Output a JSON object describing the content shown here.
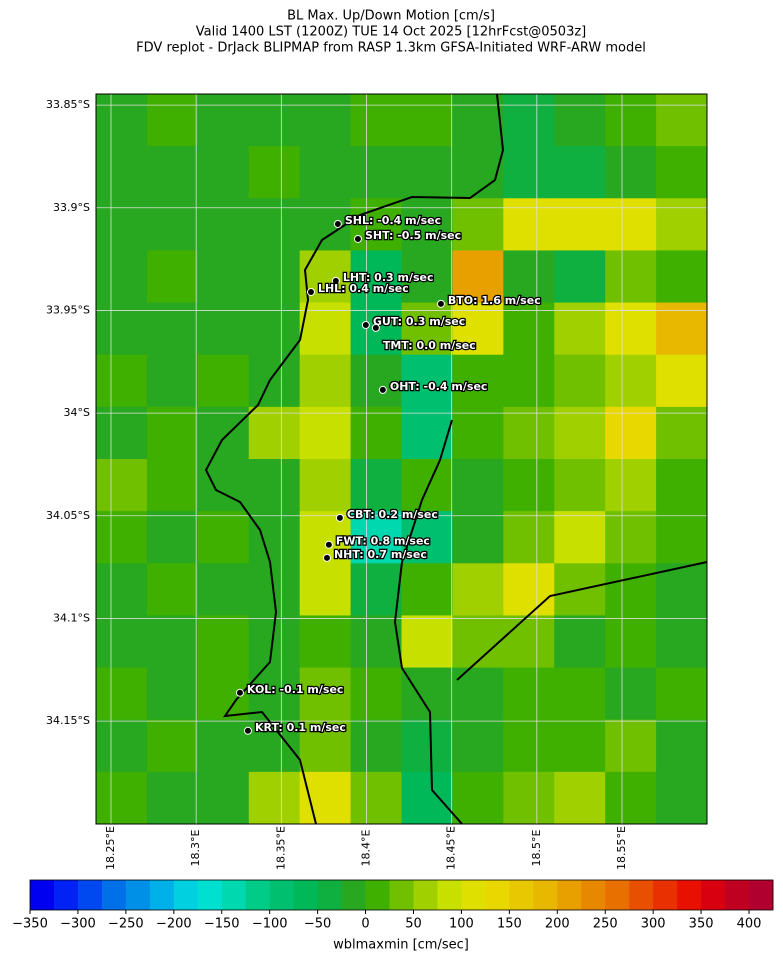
{
  "title": [
    "BL Max. Up/Down Motion [cm/s]",
    "Valid 1400 LST (1200Z) TUE 14 Oct 2025 [12hrFcst@0503z]",
    "FDV replot - DrJack BLIPMAP from RASP 1.3km GFSA-Initiated WRF-ARW model"
  ],
  "map": {
    "type": "raster",
    "xlim": [
      18.2412,
      18.5999
    ],
    "ylim": [
      -33.8446,
      -34.2001
    ],
    "xticks": [
      {
        "value": 18.25,
        "label": "18.25°E"
      },
      {
        "value": 18.3,
        "label": "18.3°E"
      },
      {
        "value": 18.35,
        "label": "18.35°E"
      },
      {
        "value": 18.4,
        "label": "18.4°E"
      },
      {
        "value": 18.45,
        "label": "18.45°E"
      },
      {
        "value": 18.5,
        "label": "18.5°E"
      },
      {
        "value": 18.55,
        "label": "18.55°E"
      }
    ],
    "yticks": [
      {
        "value": -33.85,
        "label": "33.85°S"
      },
      {
        "value": -33.9,
        "label": "33.9°S"
      },
      {
        "value": -33.95,
        "label": "33.95°S"
      },
      {
        "value": -34,
        "label": "34°S"
      },
      {
        "value": -34.05,
        "label": "34.05°S"
      },
      {
        "value": -34.1,
        "label": "34.1°S"
      },
      {
        "value": -34.15,
        "label": "34.15°S"
      }
    ],
    "grid": true,
    "field": {
      "values": [
        [
          -25,
          0,
          -25,
          -25,
          -25,
          0,
          0,
          -25,
          -50,
          -25,
          0,
          25
        ],
        [
          -25,
          -25,
          -25,
          0,
          -25,
          -25,
          -25,
          -25,
          -50,
          -50,
          -25,
          0
        ],
        [
          -25,
          -25,
          -25,
          -25,
          -25,
          0,
          -25,
          25,
          100,
          100,
          100,
          50
        ],
        [
          -25,
          0,
          -25,
          -25,
          50,
          -75,
          -25,
          200,
          -25,
          -50,
          25,
          0
        ],
        [
          -25,
          -25,
          -25,
          -25,
          75,
          -75,
          25,
          100,
          0,
          50,
          100,
          175
        ],
        [
          0,
          -25,
          0,
          -25,
          50,
          -25,
          -100,
          0,
          0,
          25,
          50,
          100
        ],
        [
          -25,
          0,
          -25,
          50,
          75,
          0,
          -100,
          0,
          25,
          50,
          125,
          25
        ],
        [
          25,
          0,
          -25,
          -25,
          50,
          -50,
          0,
          -25,
          0,
          25,
          50,
          0
        ],
        [
          0,
          -25,
          0,
          -25,
          75,
          -150,
          -100,
          -25,
          25,
          75,
          25,
          0
        ],
        [
          -25,
          0,
          -25,
          -25,
          75,
          -50,
          0,
          50,
          100,
          25,
          0,
          -25
        ],
        [
          -25,
          -25,
          0,
          -25,
          0,
          -25,
          75,
          25,
          25,
          -25,
          0,
          -25
        ],
        [
          0,
          -25,
          0,
          -25,
          25,
          0,
          -25,
          -25,
          0,
          0,
          -25,
          0
        ],
        [
          -25,
          0,
          -25,
          -25,
          25,
          -25,
          -50,
          -25,
          0,
          0,
          25,
          -25
        ],
        [
          0,
          -25,
          -25,
          50,
          100,
          25,
          -75,
          0,
          25,
          50,
          0,
          -25
        ]
      ]
    },
    "stations": [
      {
        "label": "SHL: -0.4 m/sec",
        "lat": -33.9079,
        "lon": 18.3832
      },
      {
        "label": "SHT: -0.5 m/sec",
        "lat": -33.9152,
        "lon": 18.395
      },
      {
        "label": "LHT: 0.3 m/sec",
        "lat": -33.9356,
        "lon": 18.382
      },
      {
        "label": "LHL: 0.4 m/sec",
        "lat": -33.941,
        "lon": 18.3674
      },
      {
        "label": "BTO: 1.6 m/sec",
        "lat": -33.9468,
        "lon": 18.4437
      },
      {
        "label": "GUT: 0.3 m/sec",
        "lat": -33.9571,
        "lon": 18.3996
      },
      {
        "label": "TMT: 0.0 m/sec",
        "lat": -33.9585,
        "lon": 18.4055
      },
      {
        "label": "OHT: -0.4 m/sec",
        "lat": -33.9887,
        "lon": 18.4096
      },
      {
        "label": "CBT: 0.2 m/sec",
        "lat": -34.051,
        "lon": 18.3844
      },
      {
        "label": "FWT: 0.8 m/sec",
        "lat": -34.0641,
        "lon": 18.3779
      },
      {
        "label": "NHT: 0.7 m/sec",
        "lat": -34.0705,
        "lon": 18.3768
      },
      {
        "label": "KOL: -0.1 m/sec",
        "lat": -34.1362,
        "lon": 18.3257
      },
      {
        "label": "KRT: 0.1 m/sec",
        "lat": -34.1547,
        "lon": 18.3304
      }
    ],
    "colorbar": {
      "label": "wblmaxmin [cm/sec]",
      "lim": [
        -350,
        425
      ],
      "ticks": [
        {
          "value": -350,
          "label": "−350"
        },
        {
          "value": -300,
          "label": "−300"
        },
        {
          "value": -250,
          "label": "−250"
        },
        {
          "value": -200,
          "label": "−200"
        },
        {
          "value": -150,
          "label": "−150"
        },
        {
          "value": -100,
          "label": "−100"
        },
        {
          "value": -50,
          "label": "−50"
        },
        0,
        50,
        100,
        150,
        200,
        250,
        300,
        350,
        400
      ],
      "colors": [
        "#0000f0",
        "#0022f5",
        "#0048f0",
        "#0070e8",
        "#0090e8",
        "#00b0e8",
        "#00d0e0",
        "#00e0d0",
        "#00d8b0",
        "#00cc88",
        "#00c070",
        "#00b858",
        "#10b040",
        "#28a820",
        "#40b000",
        "#70c000",
        "#a0d000",
        "#c8e000",
        "#e0e000",
        "#e8d800",
        "#e8c800",
        "#e8b800",
        "#e8a000",
        "#e88800",
        "#e87000",
        "#e85000",
        "#e83000",
        "#e81000",
        "#d80010",
        "#c00020",
        "#b00030"
      ]
    }
  }
}
